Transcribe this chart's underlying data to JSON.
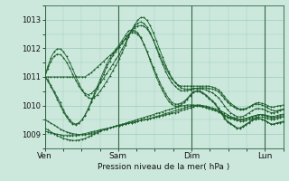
{
  "xlabel": "Pression niveau de la mer( hPa )",
  "bg_color": "#cce8dc",
  "plot_bg_color": "#cce8dc",
  "grid_color": "#99ccbb",
  "line_color": "#1a5c2a",
  "marker_color": "#1a5c2a",
  "ylim": [
    1008.5,
    1013.5
  ],
  "yticks": [
    1009,
    1010,
    1011,
    1012,
    1013
  ],
  "xtick_labels": [
    "Ven",
    "Sam",
    "Dim",
    "Lun"
  ],
  "xtick_positions": [
    0,
    24,
    48,
    72
  ],
  "total_hours": 78,
  "series": [
    [
      1011.0,
      1010.9,
      1010.7,
      1010.5,
      1010.3,
      1010.1,
      1009.85,
      1009.65,
      1009.5,
      1009.4,
      1009.35,
      1009.4,
      1009.5,
      1009.65,
      1009.85,
      1010.1,
      1010.35,
      1010.6,
      1010.85,
      1011.1,
      1011.35,
      1011.55,
      1011.75,
      1011.9,
      1012.05,
      1012.2,
      1012.35,
      1012.5,
      1012.55,
      1012.55,
      1012.5,
      1012.35,
      1012.15,
      1011.9,
      1011.62,
      1011.35,
      1011.1,
      1010.85,
      1010.62,
      1010.42,
      1010.25,
      1010.12,
      1010.05,
      1010.05,
      1010.08,
      1010.15,
      1010.25,
      1010.38,
      1010.48,
      1010.52,
      1010.52,
      1010.45,
      1010.38,
      1010.28,
      1010.18,
      1010.08,
      1009.92,
      1009.78,
      1009.6,
      1009.45,
      1009.38,
      1009.3,
      1009.22,
      1009.22,
      1009.28,
      1009.35,
      1009.42,
      1009.5,
      1009.55,
      1009.55,
      1009.52,
      1009.48,
      1009.42,
      1009.35,
      1009.35,
      1009.4,
      1009.42,
      1009.45
    ],
    [
      1011.0,
      1010.85,
      1010.65,
      1010.45,
      1010.22,
      1010.0,
      1009.78,
      1009.6,
      1009.45,
      1009.35,
      1009.32,
      1009.38,
      1009.5,
      1009.68,
      1009.9,
      1010.15,
      1010.42,
      1010.68,
      1010.95,
      1011.2,
      1011.45,
      1011.65,
      1011.82,
      1011.98,
      1012.12,
      1012.28,
      1012.45,
      1012.6,
      1012.65,
      1012.62,
      1012.55,
      1012.38,
      1012.15,
      1011.88,
      1011.58,
      1011.28,
      1011.0,
      1010.75,
      1010.52,
      1010.32,
      1010.15,
      1010.05,
      1009.98,
      1009.98,
      1010.02,
      1010.1,
      1010.22,
      1010.35,
      1010.45,
      1010.5,
      1010.48,
      1010.42,
      1010.35,
      1010.25,
      1010.15,
      1010.05,
      1009.88,
      1009.72,
      1009.55,
      1009.42,
      1009.35,
      1009.28,
      1009.2,
      1009.2,
      1009.25,
      1009.32,
      1009.4,
      1009.48,
      1009.52,
      1009.55,
      1009.52,
      1009.48,
      1009.42,
      1009.35,
      1009.35,
      1009.38,
      1009.4,
      1009.42
    ],
    [
      1011.0,
      1011.0,
      1011.0,
      1011.0,
      1011.0,
      1011.0,
      1011.0,
      1011.0,
      1011.0,
      1011.0,
      1011.0,
      1011.0,
      1011.0,
      1011.0,
      1011.08,
      1011.15,
      1011.25,
      1011.35,
      1011.45,
      1011.55,
      1011.65,
      1011.75,
      1011.85,
      1011.95,
      1012.05,
      1012.18,
      1012.32,
      1012.48,
      1012.62,
      1012.72,
      1012.78,
      1012.8,
      1012.78,
      1012.68,
      1012.52,
      1012.3,
      1012.05,
      1011.8,
      1011.55,
      1011.32,
      1011.12,
      1010.95,
      1010.82,
      1010.72,
      1010.68,
      1010.68,
      1010.68,
      1010.68,
      1010.68,
      1010.68,
      1010.68,
      1010.68,
      1010.68,
      1010.68,
      1010.65,
      1010.62,
      1010.55,
      1010.45,
      1010.32,
      1010.18,
      1010.08,
      1010.0,
      1009.92,
      1009.88,
      1009.88,
      1009.9,
      1009.95,
      1010.0,
      1010.05,
      1010.05,
      1010.02,
      1009.98,
      1009.92,
      1009.85,
      1009.82,
      1009.82,
      1009.85,
      1009.88
    ],
    [
      1011.0,
      1011.3,
      1011.55,
      1011.72,
      1011.8,
      1011.78,
      1011.68,
      1011.52,
      1011.32,
      1011.1,
      1010.88,
      1010.68,
      1010.52,
      1010.42,
      1010.38,
      1010.42,
      1010.52,
      1010.65,
      1010.8,
      1010.95,
      1011.12,
      1011.28,
      1011.45,
      1011.62,
      1011.78,
      1011.98,
      1012.18,
      1012.42,
      1012.62,
      1012.78,
      1012.88,
      1012.92,
      1012.88,
      1012.75,
      1012.55,
      1012.3,
      1012.02,
      1011.72,
      1011.45,
      1011.2,
      1010.98,
      1010.8,
      1010.68,
      1010.58,
      1010.52,
      1010.52,
      1010.52,
      1010.55,
      1010.58,
      1010.6,
      1010.62,
      1010.62,
      1010.62,
      1010.6,
      1010.58,
      1010.55,
      1010.48,
      1010.38,
      1010.25,
      1010.12,
      1010.02,
      1009.95,
      1009.88,
      1009.85,
      1009.85,
      1009.88,
      1009.95,
      1010.02,
      1010.08,
      1010.1,
      1010.08,
      1010.05,
      1010.0,
      1009.95,
      1009.95,
      1009.98,
      1010.0,
      1010.02
    ],
    [
      1011.0,
      1011.38,
      1011.68,
      1011.88,
      1011.98,
      1011.98,
      1011.88,
      1011.72,
      1011.52,
      1011.28,
      1011.02,
      1010.78,
      1010.55,
      1010.38,
      1010.28,
      1010.25,
      1010.28,
      1010.38,
      1010.52,
      1010.68,
      1010.85,
      1011.02,
      1011.22,
      1011.42,
      1011.62,
      1011.85,
      1012.1,
      1012.38,
      1012.62,
      1012.82,
      1012.98,
      1013.08,
      1013.08,
      1012.98,
      1012.8,
      1012.55,
      1012.28,
      1011.98,
      1011.7,
      1011.42,
      1011.18,
      1010.98,
      1010.82,
      1010.7,
      1010.62,
      1010.58,
      1010.58,
      1010.58,
      1010.6,
      1010.6,
      1010.6,
      1010.58,
      1010.55,
      1010.5,
      1010.45,
      1010.38,
      1010.28,
      1010.15,
      1010.0,
      1009.85,
      1009.75,
      1009.68,
      1009.62,
      1009.6,
      1009.62,
      1009.68,
      1009.75,
      1009.82,
      1009.88,
      1009.9,
      1009.88,
      1009.85,
      1009.8,
      1009.75,
      1009.75,
      1009.78,
      1009.82,
      1009.85
    ],
    [
      1009.1,
      1009.08,
      1009.05,
      1009.02,
      1009.0,
      1008.98,
      1008.95,
      1008.95,
      1008.95,
      1008.95,
      1008.95,
      1008.98,
      1009.0,
      1009.02,
      1009.05,
      1009.08,
      1009.1,
      1009.12,
      1009.15,
      1009.18,
      1009.2,
      1009.22,
      1009.25,
      1009.28,
      1009.3,
      1009.32,
      1009.35,
      1009.38,
      1009.4,
      1009.42,
      1009.45,
      1009.48,
      1009.5,
      1009.52,
      1009.55,
      1009.58,
      1009.6,
      1009.62,
      1009.65,
      1009.68,
      1009.7,
      1009.72,
      1009.75,
      1009.78,
      1009.82,
      1009.85,
      1009.88,
      1009.92,
      1009.95,
      1009.98,
      1010.0,
      1009.98,
      1009.95,
      1009.92,
      1009.88,
      1009.85,
      1009.8,
      1009.75,
      1009.68,
      1009.62,
      1009.58,
      1009.55,
      1009.52,
      1009.5,
      1009.52,
      1009.55,
      1009.58,
      1009.62,
      1009.65,
      1009.68,
      1009.68,
      1009.68,
      1009.65,
      1009.62,
      1009.62,
      1009.65,
      1009.68,
      1009.7
    ],
    [
      1009.5,
      1009.45,
      1009.38,
      1009.32,
      1009.25,
      1009.18,
      1009.12,
      1009.08,
      1009.05,
      1009.02,
      1009.0,
      1008.98,
      1008.98,
      1008.98,
      1009.0,
      1009.02,
      1009.05,
      1009.08,
      1009.12,
      1009.15,
      1009.18,
      1009.22,
      1009.25,
      1009.28,
      1009.32,
      1009.35,
      1009.38,
      1009.42,
      1009.45,
      1009.48,
      1009.52,
      1009.55,
      1009.58,
      1009.62,
      1009.65,
      1009.68,
      1009.72,
      1009.75,
      1009.78,
      1009.82,
      1009.85,
      1009.88,
      1009.92,
      1009.95,
      1009.98,
      1010.0,
      1010.02,
      1010.02,
      1010.02,
      1010.0,
      1009.98,
      1009.95,
      1009.92,
      1009.88,
      1009.85,
      1009.82,
      1009.78,
      1009.72,
      1009.65,
      1009.58,
      1009.55,
      1009.52,
      1009.48,
      1009.45,
      1009.45,
      1009.48,
      1009.52,
      1009.55,
      1009.58,
      1009.6,
      1009.6,
      1009.58,
      1009.55,
      1009.52,
      1009.52,
      1009.55,
      1009.58,
      1009.6
    ],
    [
      1009.2,
      1009.15,
      1009.08,
      1009.02,
      1008.95,
      1008.9,
      1008.85,
      1008.82,
      1008.8,
      1008.78,
      1008.78,
      1008.8,
      1008.82,
      1008.85,
      1008.9,
      1008.95,
      1009.0,
      1009.05,
      1009.1,
      1009.15,
      1009.18,
      1009.22,
      1009.25,
      1009.28,
      1009.3,
      1009.32,
      1009.35,
      1009.38,
      1009.4,
      1009.42,
      1009.45,
      1009.48,
      1009.5,
      1009.52,
      1009.55,
      1009.58,
      1009.62,
      1009.65,
      1009.68,
      1009.72,
      1009.75,
      1009.78,
      1009.82,
      1009.85,
      1009.88,
      1009.92,
      1009.95,
      1009.98,
      1010.0,
      1010.02,
      1010.02,
      1010.0,
      1009.98,
      1009.95,
      1009.92,
      1009.88,
      1009.85,
      1009.8,
      1009.75,
      1009.68,
      1009.62,
      1009.58,
      1009.55,
      1009.52,
      1009.52,
      1009.55,
      1009.58,
      1009.62,
      1009.65,
      1009.68,
      1009.68,
      1009.65,
      1009.62,
      1009.58,
      1009.58,
      1009.6,
      1009.62,
      1009.65
    ]
  ]
}
